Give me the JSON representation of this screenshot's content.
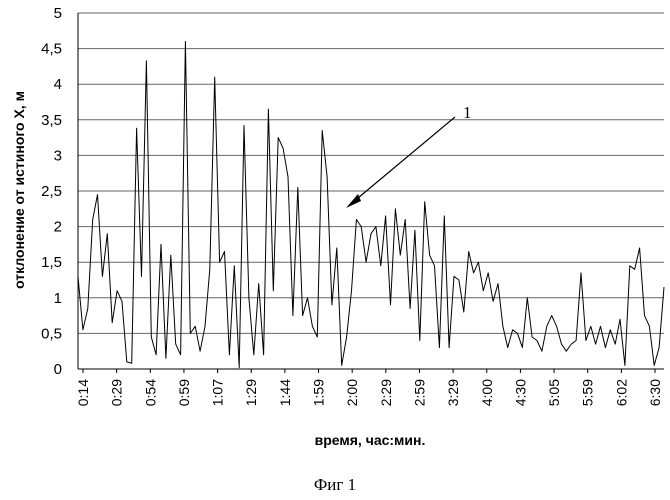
{
  "caption": "Фиг 1",
  "chart_data": {
    "type": "line",
    "xlabel": "время, час:мин.",
    "ylabel": "отклонение от истиного X, м",
    "ylim": [
      0,
      5
    ],
    "ytick_labels": [
      "0",
      "0,5",
      "1",
      "1,5",
      "2",
      "2,5",
      "3",
      "3,5",
      "4",
      "4,5",
      "5"
    ],
    "xtick_labels": [
      "0:14",
      "0:29",
      "0:54",
      "0:59",
      "1:07",
      "1:29",
      "1:44",
      "1:59",
      "2:00",
      "2:29",
      "2:59",
      "3:29",
      "4:00",
      "4:30",
      "5:05",
      "5:59",
      "6:02",
      "6:30"
    ],
    "grid": "horizontal",
    "annotation": {
      "label": "1"
    },
    "series": [
      {
        "values": [
          1.3,
          0.55,
          0.85,
          2.1,
          2.45,
          1.3,
          1.9,
          0.65,
          1.1,
          0.95,
          0.1,
          0.08,
          3.38,
          1.3,
          4.33,
          0.45,
          0.2,
          1.75,
          0.15,
          1.6,
          0.35,
          0.2,
          4.6,
          0.5,
          0.6,
          0.25,
          0.6,
          1.4,
          4.1,
          1.5,
          1.65,
          0.2,
          1.45,
          0.02,
          3.42,
          1.0,
          0.2,
          1.2,
          0.2,
          3.65,
          1.1,
          3.25,
          3.1,
          2.7,
          0.75,
          2.55,
          0.75,
          1.0,
          0.6,
          0.45,
          3.35,
          2.7,
          0.9,
          1.7,
          0.05,
          0.45,
          1.1,
          2.1,
          2.0,
          1.5,
          1.9,
          2.0,
          1.45,
          2.15,
          0.9,
          2.25,
          1.6,
          2.1,
          0.85,
          1.95,
          0.4,
          2.35,
          1.6,
          1.45,
          0.3,
          2.15,
          0.3,
          1.3,
          1.25,
          0.8,
          1.65,
          1.35,
          1.5,
          1.1,
          1.35,
          0.95,
          1.2,
          0.6,
          0.3,
          0.55,
          0.5,
          0.3,
          1.0,
          0.45,
          0.4,
          0.25,
          0.6,
          0.75,
          0.6,
          0.35,
          0.25,
          0.35,
          0.4,
          1.35,
          0.4,
          0.6,
          0.35,
          0.6,
          0.3,
          0.55,
          0.35,
          0.7,
          0.05,
          1.45,
          1.4,
          1.7,
          0.75,
          0.6,
          0.05,
          0.3,
          1.15
        ]
      }
    ]
  }
}
